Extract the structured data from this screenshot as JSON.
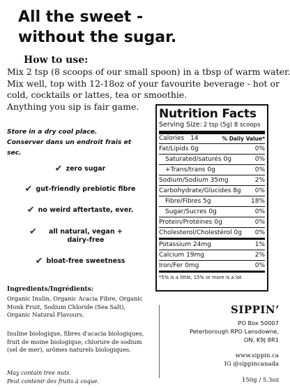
{
  "headline": [
    "All the sweet -",
    "without the sugar."
  ],
  "how_to": {
    "title": "How to use:",
    "lines": [
      "Mix 2 tsp (8 scoops of our small spoon) in a tbsp of warm water.",
      "Mix well, top with 12-18oz of your favourite beverage - hot or",
      "cold, cocktails or lattes, tea or smoothie.",
      "Anything you sip is fair game."
    ]
  },
  "storage": {
    "en": "Store in a dry cool place.",
    "fr": "Conserver dans un endroit frais et sec."
  },
  "claims": [
    {
      "icon": "checkmark-icon",
      "text": "zero sugar"
    },
    {
      "icon": "checkmark-icon",
      "text": "gut-friendly prebiotic fibre"
    },
    {
      "icon": "checkmark-icon",
      "text": "no weird aftertaste, ever."
    },
    {
      "icon": "checkmark-icon",
      "text": "all natural, vegan + dairy-free"
    },
    {
      "icon": "checkmark-icon",
      "text": "bloat-free sweetness"
    }
  ],
  "nutrition": {
    "title": "Nutrition Facts",
    "serving_label": "Serving Size:",
    "serving_value": "2 tsp (5g) 8 scoops",
    "calories_label": "Calories",
    "calories_value": "14",
    "dv_header": "% Daily Value*",
    "rows": [
      {
        "label": "Fat/Lipids 0g",
        "value": "0%",
        "indent": false,
        "thick": false
      },
      {
        "label": "Saturated/saturés 0g",
        "value": "0%",
        "indent": true,
        "thick": false
      },
      {
        "label": "+Trans/trans 0g",
        "value": "0%",
        "indent": true,
        "thick": false
      },
      {
        "label": "Sodium/Sodium 35mg",
        "value": "2%",
        "indent": false,
        "thick": false
      },
      {
        "label": "Carbohydrate/Glucides 8g",
        "value": "0%",
        "indent": false,
        "thick": false
      },
      {
        "label": "Fibre/Fibres 5g",
        "value": "18%",
        "indent": true,
        "thick": false
      },
      {
        "label": "Sugar/Sucres 0g",
        "value": "0%",
        "indent": true,
        "thick": false
      },
      {
        "label": "Protein/Protéines 0g",
        "value": "0%",
        "indent": false,
        "thick": false
      },
      {
        "label": "Cholesterol/Cholestérol 0g",
        "value": "0%",
        "indent": false,
        "thick": true
      },
      {
        "label": "Potassium 24mg",
        "value": "1%",
        "indent": false,
        "thick": false
      },
      {
        "label": "Calcium 19mg",
        "value": "2%",
        "indent": false,
        "thick": false
      },
      {
        "label": "Iron/Fer 0mg",
        "value": "0%",
        "indent": false,
        "thick": true
      }
    ],
    "footnote": "*5% is a little, 15% or more is a lot"
  },
  "ingredients": {
    "title": "Ingredients/Ingrédients:",
    "en_lines": [
      "Organic Inulin, Organic Acacia Fibre, Organic",
      "Monk Fruit, Sodium Chloride (Sea Salt),",
      "Organic Natural Flavours."
    ],
    "fr_lines": [
      "Inuline biologique, fibres d'acacia biologiques,",
      "fruit de moine biologique, chlorure de sodium",
      "(sel de mer), arômes naturels biologiques."
    ],
    "allergen_en": "May contain tree nuts.",
    "allergen_fr": "Peut contenir des fruits à coque."
  },
  "company": {
    "brand": "SIPPIN’",
    "address": [
      "PO Box 50007",
      "Peterborough RPO Lansdowne,",
      "ON, K9J 8R1"
    ],
    "website": "www.sippin.ca",
    "instagram": "IG @sippincanada",
    "net_weight": "150g / 5.3oz"
  }
}
